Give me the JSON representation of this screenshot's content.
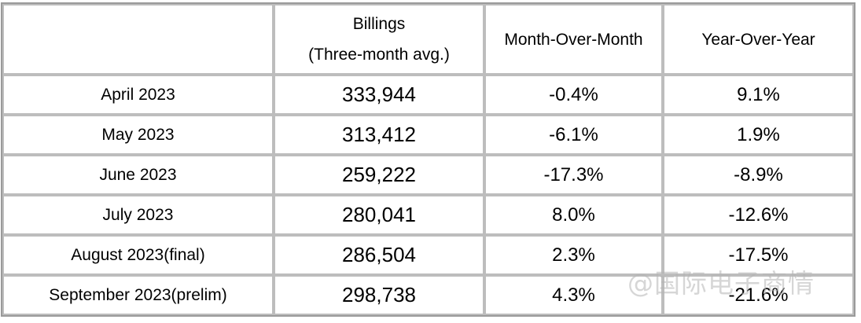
{
  "table": {
    "header": {
      "col0": "",
      "billings_line1": "Billings",
      "billings_line2": "(Three-month avg.)",
      "mom": "Month-Over-Month",
      "yoy": "Year-Over-Year"
    },
    "rows": [
      {
        "month": "April 2023",
        "billings": "333,944",
        "mom": "-0.4%",
        "yoy": "9.1%"
      },
      {
        "month": "May 2023",
        "billings": "313,412",
        "mom": "-6.1%",
        "yoy": "1.9%"
      },
      {
        "month": "June 2023",
        "billings": "259,222",
        "mom": "-17.3%",
        "yoy": "-8.9%"
      },
      {
        "month": "July 2023",
        "billings": "280,041",
        "mom": "8.0%",
        "yoy": "-12.6%"
      },
      {
        "month": "August 2023(final)",
        "billings": "286,504",
        "mom": "2.3%",
        "yoy": "-17.5%"
      },
      {
        "month": "September 2023(prelim)",
        "billings": "298,738",
        "mom": "4.3%",
        "yoy": "-21.6%"
      }
    ]
  },
  "watermark": "@国际电子商情"
}
